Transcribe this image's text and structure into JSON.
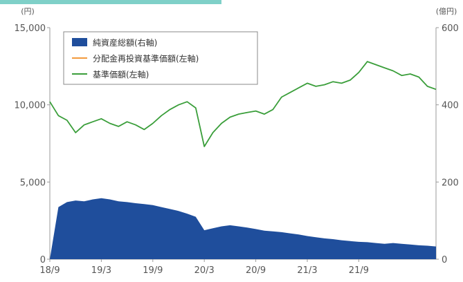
{
  "chart_data": {
    "type": "line",
    "title": "",
    "left_axis": {
      "unit": "(円)",
      "ylim": [
        0,
        15000
      ],
      "ticks": [
        "15,000",
        "10,000",
        "5,000",
        "0"
      ],
      "tick_values": [
        15000,
        10000,
        5000,
        0
      ]
    },
    "right_axis": {
      "unit": "(億円)",
      "ylim": [
        0,
        600
      ],
      "ticks": [
        "600",
        "400",
        "200",
        "0"
      ],
      "tick_values": [
        600,
        400,
        200,
        0
      ]
    },
    "x_ticks": [
      "18/9",
      "19/3",
      "19/9",
      "20/3",
      "20/9",
      "21/3",
      "21/9"
    ],
    "x_range": [
      "2018-09",
      "2022-06"
    ],
    "legend_placement": "top-left",
    "series": [
      {
        "name": "純資産総額(右軸)",
        "kind": "area",
        "axis": "right",
        "color": "#1f4e9c",
        "x": [
          "2018-09",
          "2018-10",
          "2018-11",
          "2018-12",
          "2019-01",
          "2019-02",
          "2019-03",
          "2019-04",
          "2019-05",
          "2019-06",
          "2019-07",
          "2019-08",
          "2019-09",
          "2019-10",
          "2019-11",
          "2019-12",
          "2020-01",
          "2020-02",
          "2020-03",
          "2020-04",
          "2020-05",
          "2020-06",
          "2020-07",
          "2020-08",
          "2020-09",
          "2020-10",
          "2020-11",
          "2020-12",
          "2021-01",
          "2021-02",
          "2021-03",
          "2021-04",
          "2021-05",
          "2021-06",
          "2021-07",
          "2021-08",
          "2021-09",
          "2021-10",
          "2021-11",
          "2021-12",
          "2022-01",
          "2022-02",
          "2022-03",
          "2022-04",
          "2022-05",
          "2022-06"
        ],
        "values": [
          0,
          135,
          148,
          152,
          150,
          155,
          158,
          155,
          150,
          148,
          145,
          143,
          140,
          135,
          130,
          125,
          118,
          110,
          75,
          80,
          85,
          88,
          85,
          82,
          78,
          74,
          72,
          70,
          67,
          64,
          60,
          57,
          54,
          52,
          49,
          47,
          45,
          44,
          42,
          40,
          42,
          40,
          38,
          36,
          35,
          33
        ]
      },
      {
        "name": "分配金再投資基準価額(左軸)",
        "kind": "line",
        "axis": "left",
        "color": "#f39a3c",
        "x": [],
        "values": []
      },
      {
        "name": "基準価額(左軸)",
        "kind": "line",
        "axis": "left",
        "color": "#3a9e3a",
        "x": [
          "2018-09",
          "2018-10",
          "2018-11",
          "2018-12",
          "2019-01",
          "2019-02",
          "2019-03",
          "2019-04",
          "2019-05",
          "2019-06",
          "2019-07",
          "2019-08",
          "2019-09",
          "2019-10",
          "2019-11",
          "2019-12",
          "2020-01",
          "2020-02",
          "2020-03",
          "2020-04",
          "2020-05",
          "2020-06",
          "2020-07",
          "2020-08",
          "2020-09",
          "2020-10",
          "2020-11",
          "2020-12",
          "2021-01",
          "2021-02",
          "2021-03",
          "2021-04",
          "2021-05",
          "2021-06",
          "2021-07",
          "2021-08",
          "2021-09",
          "2021-10",
          "2021-11",
          "2021-12",
          "2022-01",
          "2022-02",
          "2022-03",
          "2022-04",
          "2022-05",
          "2022-06"
        ],
        "values": [
          10200,
          9300,
          9000,
          8200,
          8700,
          8900,
          9100,
          8800,
          8600,
          8900,
          8700,
          8400,
          8800,
          9300,
          9700,
          10000,
          10200,
          9800,
          7300,
          8200,
          8800,
          9200,
          9400,
          9500,
          9600,
          9400,
          9700,
          10500,
          10800,
          11100,
          11400,
          11200,
          11300,
          11500,
          11400,
          11600,
          12100,
          12800,
          12600,
          12400,
          12200,
          11900,
          12000,
          11800,
          11200,
          11000
        ]
      }
    ]
  }
}
